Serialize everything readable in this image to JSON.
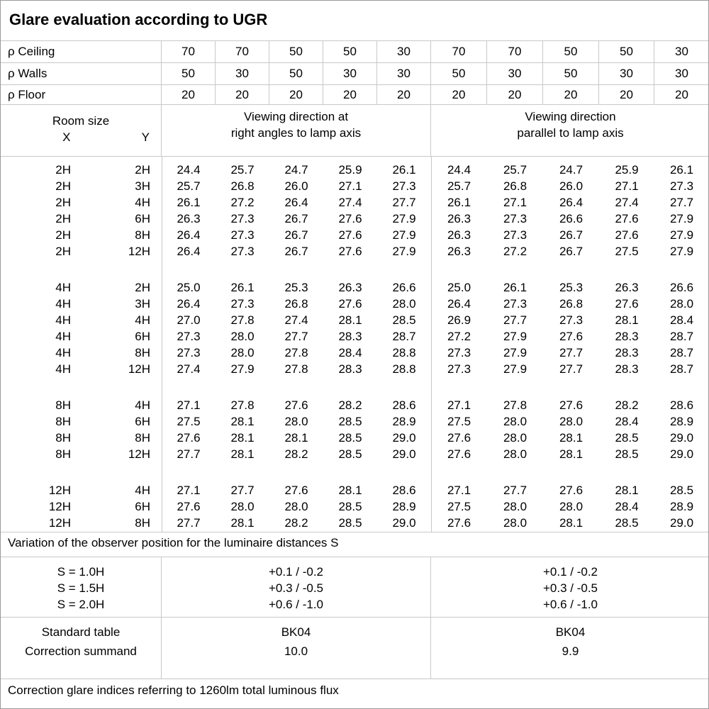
{
  "title": "Glare evaluation according to UGR",
  "reflectance_rows": [
    {
      "label": "ρ Ceiling",
      "values": [
        "70",
        "70",
        "50",
        "50",
        "30",
        "70",
        "70",
        "50",
        "50",
        "30"
      ]
    },
    {
      "label": "ρ Walls",
      "values": [
        "50",
        "30",
        "50",
        "30",
        "30",
        "50",
        "30",
        "50",
        "30",
        "30"
      ]
    },
    {
      "label": "ρ Floor",
      "values": [
        "20",
        "20",
        "20",
        "20",
        "20",
        "20",
        "20",
        "20",
        "20",
        "20"
      ]
    }
  ],
  "header": {
    "room_size_label": "Room size",
    "x_label": "X",
    "y_label": "Y",
    "left_heading_line1": "Viewing direction at",
    "left_heading_line2": "right angles to lamp axis",
    "right_heading_line1": "Viewing direction",
    "right_heading_line2": "parallel to lamp axis"
  },
  "ugr_blocks": [
    {
      "rows": [
        {
          "x": "2H",
          "y": "2H",
          "left": [
            "24.4",
            "25.7",
            "24.7",
            "25.9",
            "26.1"
          ],
          "right": [
            "24.4",
            "25.7",
            "24.7",
            "25.9",
            "26.1"
          ]
        },
        {
          "x": "2H",
          "y": "3H",
          "left": [
            "25.7",
            "26.8",
            "26.0",
            "27.1",
            "27.3"
          ],
          "right": [
            "25.7",
            "26.8",
            "26.0",
            "27.1",
            "27.3"
          ]
        },
        {
          "x": "2H",
          "y": "4H",
          "left": [
            "26.1",
            "27.2",
            "26.4",
            "27.4",
            "27.7"
          ],
          "right": [
            "26.1",
            "27.1",
            "26.4",
            "27.4",
            "27.7"
          ]
        },
        {
          "x": "2H",
          "y": "6H",
          "left": [
            "26.3",
            "27.3",
            "26.7",
            "27.6",
            "27.9"
          ],
          "right": [
            "26.3",
            "27.3",
            "26.6",
            "27.6",
            "27.9"
          ]
        },
        {
          "x": "2H",
          "y": "8H",
          "left": [
            "26.4",
            "27.3",
            "26.7",
            "27.6",
            "27.9"
          ],
          "right": [
            "26.3",
            "27.3",
            "26.7",
            "27.6",
            "27.9"
          ]
        },
        {
          "x": "2H",
          "y": "12H",
          "left": [
            "26.4",
            "27.3",
            "26.7",
            "27.6",
            "27.9"
          ],
          "right": [
            "26.3",
            "27.2",
            "26.7",
            "27.5",
            "27.9"
          ]
        }
      ]
    },
    {
      "rows": [
        {
          "x": "4H",
          "y": "2H",
          "left": [
            "25.0",
            "26.1",
            "25.3",
            "26.3",
            "26.6"
          ],
          "right": [
            "25.0",
            "26.1",
            "25.3",
            "26.3",
            "26.6"
          ]
        },
        {
          "x": "4H",
          "y": "3H",
          "left": [
            "26.4",
            "27.3",
            "26.8",
            "27.6",
            "28.0"
          ],
          "right": [
            "26.4",
            "27.3",
            "26.8",
            "27.6",
            "28.0"
          ]
        },
        {
          "x": "4H",
          "y": "4H",
          "left": [
            "27.0",
            "27.8",
            "27.4",
            "28.1",
            "28.5"
          ],
          "right": [
            "26.9",
            "27.7",
            "27.3",
            "28.1",
            "28.4"
          ]
        },
        {
          "x": "4H",
          "y": "6H",
          "left": [
            "27.3",
            "28.0",
            "27.7",
            "28.3",
            "28.7"
          ],
          "right": [
            "27.2",
            "27.9",
            "27.6",
            "28.3",
            "28.7"
          ]
        },
        {
          "x": "4H",
          "y": "8H",
          "left": [
            "27.3",
            "28.0",
            "27.8",
            "28.4",
            "28.8"
          ],
          "right": [
            "27.3",
            "27.9",
            "27.7",
            "28.3",
            "28.7"
          ]
        },
        {
          "x": "4H",
          "y": "12H",
          "left": [
            "27.4",
            "27.9",
            "27.8",
            "28.3",
            "28.8"
          ],
          "right": [
            "27.3",
            "27.9",
            "27.7",
            "28.3",
            "28.7"
          ]
        }
      ]
    },
    {
      "rows": [
        {
          "x": "8H",
          "y": "4H",
          "left": [
            "27.1",
            "27.8",
            "27.6",
            "28.2",
            "28.6"
          ],
          "right": [
            "27.1",
            "27.8",
            "27.6",
            "28.2",
            "28.6"
          ]
        },
        {
          "x": "8H",
          "y": "6H",
          "left": [
            "27.5",
            "28.1",
            "28.0",
            "28.5",
            "28.9"
          ],
          "right": [
            "27.5",
            "28.0",
            "28.0",
            "28.4",
            "28.9"
          ]
        },
        {
          "x": "8H",
          "y": "8H",
          "left": [
            "27.6",
            "28.1",
            "28.1",
            "28.5",
            "29.0"
          ],
          "right": [
            "27.6",
            "28.0",
            "28.1",
            "28.5",
            "29.0"
          ]
        },
        {
          "x": "8H",
          "y": "12H",
          "left": [
            "27.7",
            "28.1",
            "28.2",
            "28.5",
            "29.0"
          ],
          "right": [
            "27.6",
            "28.0",
            "28.1",
            "28.5",
            "29.0"
          ]
        }
      ]
    },
    {
      "rows": [
        {
          "x": "12H",
          "y": "4H",
          "left": [
            "27.1",
            "27.7",
            "27.6",
            "28.1",
            "28.6"
          ],
          "right": [
            "27.1",
            "27.7",
            "27.6",
            "28.1",
            "28.5"
          ]
        },
        {
          "x": "12H",
          "y": "6H",
          "left": [
            "27.6",
            "28.0",
            "28.0",
            "28.5",
            "28.9"
          ],
          "right": [
            "27.5",
            "28.0",
            "28.0",
            "28.4",
            "28.9"
          ]
        },
        {
          "x": "12H",
          "y": "8H",
          "left": [
            "27.7",
            "28.1",
            "28.2",
            "28.5",
            "29.0"
          ],
          "right": [
            "27.6",
            "28.0",
            "28.1",
            "28.5",
            "29.0"
          ]
        }
      ]
    }
  ],
  "variation_note": "Variation of the observer position for the luminaire distances S",
  "variation": {
    "labels": [
      "S = 1.0H",
      "S = 1.5H",
      "S = 2.0H"
    ],
    "left": [
      "+0.1 / -0.2",
      "+0.3 / -0.5",
      "+0.6 / -1.0"
    ],
    "right": [
      "+0.1 / -0.2",
      "+0.3 / -0.5",
      "+0.6 / -1.0"
    ]
  },
  "summary": {
    "labels": [
      "Standard table",
      "Correction summand"
    ],
    "left": [
      "BK04",
      "10.0"
    ],
    "right": [
      "BK04",
      "9.9"
    ]
  },
  "footer_note": "Correction glare indices referring to 1260lm total luminous flux"
}
